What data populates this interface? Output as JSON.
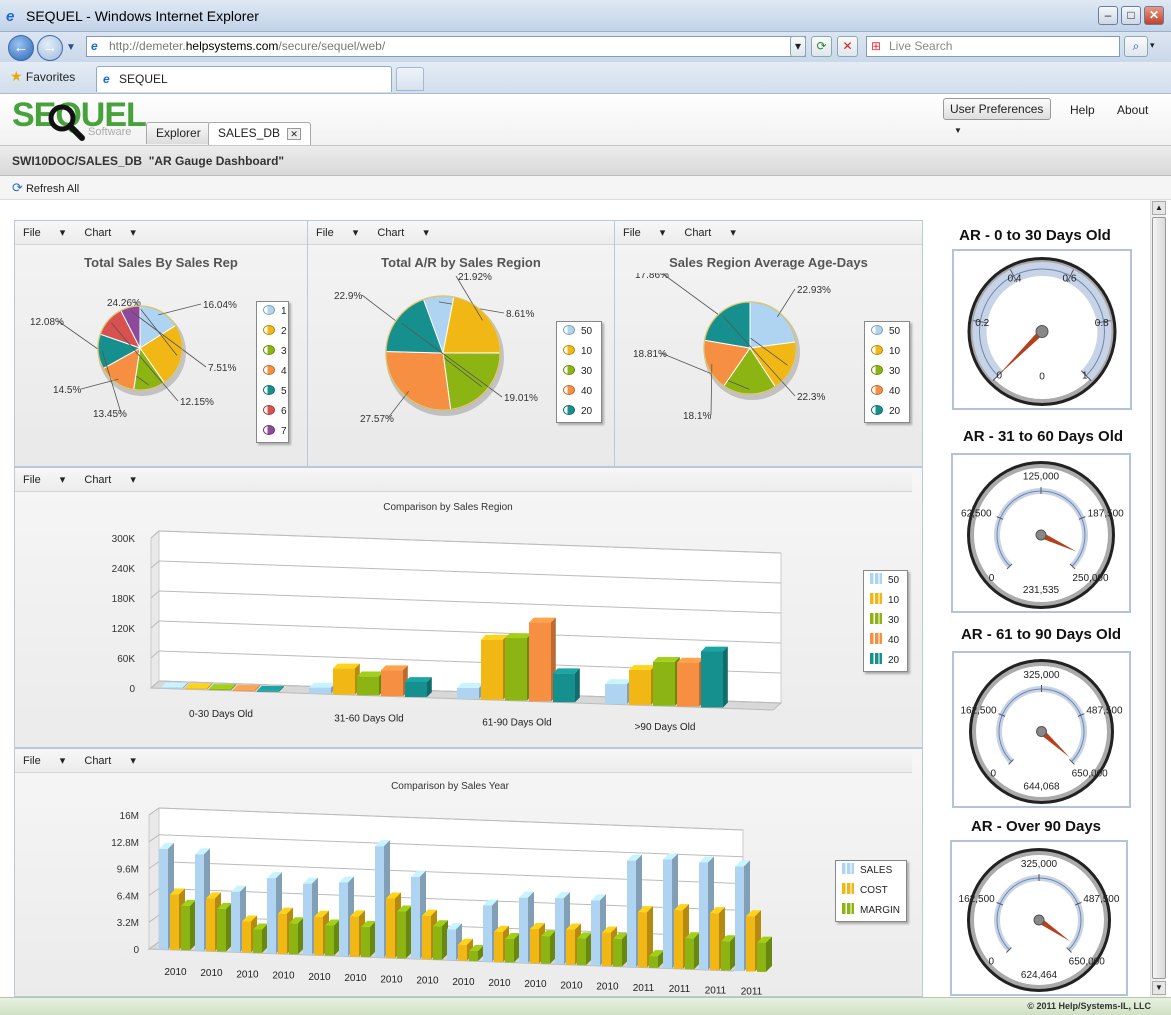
{
  "browser": {
    "window_title": "SEQUEL - Windows Internet Explorer",
    "url_prefix": "http://demeter.",
    "url_domain": "helpsystems.com",
    "url_suffix": "/secure/sequel/web/",
    "search_placeholder": "Live Search",
    "favorites_label": "Favorites",
    "tab_title": "SEQUEL"
  },
  "app": {
    "logo_text": "SEQUEL",
    "logo_sub": "Software",
    "tabs": [
      "Explorer",
      "SALES_DB"
    ],
    "user_preferences": "User Preferences",
    "help": "Help",
    "about": "About",
    "breadcrumb": "SWI10DOC/SALES_DB  \"AR Gauge Dashboard\"",
    "refresh_all": "Refresh All",
    "footer": "© 2011 Help/Systems-IL, LLC",
    "menu_file": "File",
    "menu_chart": "Chart"
  },
  "colors": {
    "c50": "#aed4f1",
    "c10": "#f1b815",
    "c30": "#8cb514",
    "c40": "#f78f43",
    "c20": "#16908f",
    "c6": "#d9514f",
    "c7": "#8d4a9c"
  },
  "chart_data": [
    {
      "type": "pie",
      "title": "Total Sales By Sales Rep",
      "categories": [
        "1",
        "2",
        "3",
        "4",
        "5",
        "6",
        "7"
      ],
      "values": [
        16.04,
        24.26,
        12.08,
        14.5,
        13.45,
        12.15,
        7.51
      ],
      "labels": [
        "16.04%",
        "24.26%",
        "12.08%",
        "14.5%",
        "13.45%",
        "12.15%",
        "7.51%"
      ],
      "legend": "right"
    },
    {
      "type": "pie",
      "title": "Total A/R by Sales Region",
      "categories": [
        "50",
        "10",
        "30",
        "40",
        "20"
      ],
      "values": [
        8.61,
        21.92,
        22.9,
        27.57,
        19.01
      ],
      "labels": [
        "8.61%",
        "21.92%",
        "22.9%",
        "27.57%",
        "19.01%"
      ],
      "legend": "right"
    },
    {
      "type": "pie",
      "title": "Sales Region Average Age-Days",
      "categories": [
        "50",
        "10",
        "30",
        "40",
        "20"
      ],
      "values": [
        22.93,
        17.86,
        18.81,
        18.1,
        22.3
      ],
      "labels": [
        "22.93%",
        "17.86%",
        "18.81%",
        "18.1%",
        "22.3%"
      ],
      "legend": "right"
    },
    {
      "type": "bar",
      "title": "Comparison by Sales Region",
      "categories": [
        "0-30 Days Old",
        "31-60 Days Old",
        "61-90 Days Old",
        ">90 Days Old"
      ],
      "series": [
        {
          "name": "50",
          "values": [
            2000,
            12000,
            22000,
            40000
          ]
        },
        {
          "name": "10",
          "values": [
            2000,
            52000,
            120000,
            70000
          ]
        },
        {
          "name": "30",
          "values": [
            2000,
            38000,
            125000,
            88000
          ]
        },
        {
          "name": "40",
          "values": [
            2000,
            52000,
            158000,
            88000
          ]
        },
        {
          "name": "20",
          "values": [
            2000,
            30000,
            58000,
            112000
          ]
        }
      ],
      "yticks": [
        "0",
        "60K",
        "120K",
        "180K",
        "240K",
        "300K"
      ],
      "ylim": [
        0,
        300000
      ],
      "legend": "right"
    },
    {
      "type": "bar",
      "title": "Comparison by Sales Year",
      "categories": [
        "2010",
        "2010",
        "2010",
        "2010",
        "2010",
        "2010",
        "2010",
        "2010",
        "2010",
        "2010",
        "2010",
        "2010",
        "2010",
        "2011",
        "2011",
        "2011",
        "2011"
      ],
      "series": [
        {
          "name": "SALES",
          "values": [
            12000000,
            11500000,
            7200000,
            9000000,
            8500000,
            8800000,
            13300000,
            9800000,
            3700000,
            6700000,
            7800000,
            7900000,
            7800000,
            12700000,
            13000000,
            12800000,
            12500000
          ]
        },
        {
          "name": "COST",
          "values": [
            6600000,
            6300000,
            3700000,
            4800000,
            4600000,
            4800000,
            7100000,
            5200000,
            1900000,
            3600000,
            4100000,
            4200000,
            4000000,
            6600000,
            7000000,
            6800000,
            6600000
          ]
        },
        {
          "name": "MARGIN",
          "values": [
            5300000,
            5100000,
            2800000,
            3700000,
            3600000,
            3600000,
            5600000,
            4000000,
            1200000,
            2800000,
            3300000,
            3200000,
            3300000,
            1400000,
            3700000,
            3500000,
            3500000
          ]
        }
      ],
      "yticks": [
        "0",
        "3.2M",
        "6.4M",
        "9.6M",
        "12.8M",
        "16M"
      ],
      "ylim": [
        0,
        16000000
      ],
      "legend": "right"
    }
  ],
  "gauges": [
    {
      "title": "AR - 0 to 30 Days Old",
      "ticks": [
        "0",
        "0.2",
        "0.4",
        "0.6",
        "0.8",
        "1"
      ],
      "max": 1,
      "value": 0,
      "readout": "0"
    },
    {
      "title": "AR - 31 to 60 Days Old",
      "ticks": [
        "0",
        "62,500",
        "125,000",
        "187,500",
        "250,000"
      ],
      "max": 250000,
      "value": 231535,
      "readout": "231,535"
    },
    {
      "title": "AR - 61 to 90 Days Old",
      "ticks": [
        "0",
        "162,500",
        "325,000",
        "487,500",
        "650,000"
      ],
      "max": 650000,
      "value": 644068,
      "readout": "644,068"
    },
    {
      "title": "AR - Over 90 Days",
      "ticks": [
        "0",
        "162,500",
        "325,000",
        "487,500",
        "650,000"
      ],
      "max": 650000,
      "value": 624464,
      "readout": "624,464"
    }
  ]
}
